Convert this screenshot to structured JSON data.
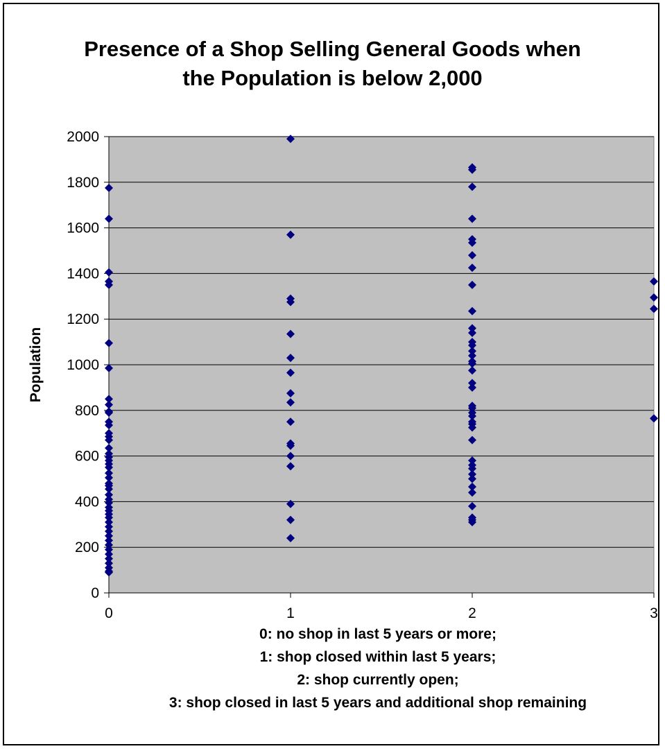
{
  "chart_data": {
    "type": "scatter",
    "title": [
      "Presence of a Shop Selling General Goods when",
      "the Population is below 2,000"
    ],
    "xlabel_lines": [
      "0: no shop in last 5 years or more;",
      "1: shop closed within last 5 years;",
      "2: shop currently open;",
      "3: shop closed in last 5 years and additional shop remaining"
    ],
    "ylabel": "Population",
    "xlim": [
      0,
      3
    ],
    "ylim": [
      0,
      2000
    ],
    "x_ticks": [
      0,
      1,
      2,
      3
    ],
    "y_ticks": [
      0,
      200,
      400,
      600,
      800,
      1000,
      1200,
      1400,
      1600,
      1800,
      2000
    ],
    "grid": "horizontal",
    "plot_background": "#c0c0c0",
    "marker_color": "#000080",
    "marker": "diamond",
    "series": [
      {
        "x": 0,
        "values": [
          1775,
          1640,
          1405,
          1365,
          1350,
          1095,
          985,
          850,
          825,
          795,
          790,
          750,
          735,
          700,
          685,
          670,
          635,
          610,
          595,
          580,
          565,
          550,
          525,
          505,
          480,
          470,
          455,
          430,
          410,
          395,
          375,
          360,
          345,
          330,
          310,
          290,
          270,
          250,
          230,
          210,
          190,
          170,
          150,
          130,
          110,
          95,
          90
        ]
      },
      {
        "x": 1,
        "values": [
          1990,
          1570,
          1290,
          1275,
          1135,
          1030,
          965,
          875,
          835,
          750,
          655,
          645,
          600,
          555,
          390,
          320,
          240
        ]
      },
      {
        "x": 2,
        "values": [
          1865,
          1855,
          1780,
          1640,
          1550,
          1535,
          1480,
          1425,
          1350,
          1235,
          1160,
          1140,
          1100,
          1085,
          1060,
          1040,
          1015,
          1005,
          975,
          920,
          900,
          820,
          810,
          790,
          775,
          750,
          740,
          725,
          670,
          580,
          560,
          545,
          520,
          500,
          465,
          440,
          380,
          330,
          320,
          310
        ]
      },
      {
        "x": 3,
        "values": [
          1365,
          1295,
          1245,
          765
        ]
      }
    ]
  }
}
